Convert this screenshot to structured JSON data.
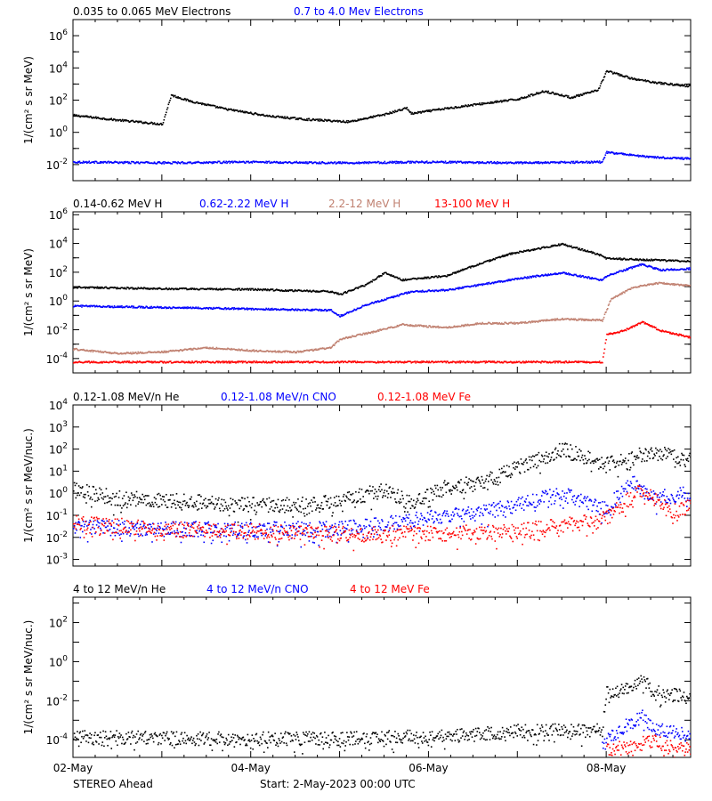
{
  "chart_data": [
    {
      "type": "scatter",
      "ylabel": "1/(cm² s sr MeV)",
      "log_y": true,
      "y_tick_exponents": [
        "6",
        "4",
        "2",
        "0",
        "-2"
      ],
      "series": [
        {
          "name": "0.035 to 0.065 MeV Electrons",
          "color": "#000000",
          "x": [
            2.0,
            2.5,
            3.0,
            3.1,
            3.3,
            3.7,
            4.2,
            4.6,
            5.1,
            5.5,
            5.75,
            5.8,
            6.1,
            6.5,
            7.0,
            7.3,
            7.6,
            7.9,
            8.0,
            8.3,
            8.6,
            8.95
          ],
          "y": [
            1.1,
            0.8,
            0.55,
            2.35,
            2.0,
            1.5,
            1.05,
            0.85,
            0.7,
            1.15,
            1.55,
            1.2,
            1.45,
            1.75,
            2.1,
            2.6,
            2.2,
            2.65,
            3.85,
            3.35,
            3.1,
            2.9
          ]
        },
        {
          "name": "0.7 to 4.0 Mev Electrons",
          "color": "#0000ff",
          "x": [
            2.0,
            3.0,
            4.0,
            5.0,
            6.0,
            7.0,
            7.95,
            8.0,
            8.5,
            8.95
          ],
          "y": [
            -1.8,
            -1.85,
            -1.8,
            -1.85,
            -1.8,
            -1.85,
            -1.8,
            -1.2,
            -1.5,
            -1.6
          ]
        }
      ],
      "x_ticks": [
        "02-May",
        "04-May",
        "06-May",
        "08-May"
      ]
    },
    {
      "type": "scatter",
      "ylabel": "1/(cm² s sr MeV)",
      "log_y": true,
      "y_tick_exponents": [
        "6",
        "4",
        "2",
        "0",
        "-2",
        "-4"
      ],
      "series": [
        {
          "name": "0.14-0.62 MeV H",
          "color": "#000000",
          "x": [
            2.0,
            3.0,
            4.0,
            4.9,
            5.0,
            5.3,
            5.5,
            5.7,
            6.2,
            6.6,
            6.9,
            7.5,
            7.9,
            8.0,
            8.5,
            8.95
          ],
          "y": [
            1.0,
            0.9,
            0.85,
            0.7,
            0.5,
            1.2,
            2.0,
            1.5,
            1.8,
            2.7,
            3.3,
            4.0,
            3.3,
            3.0,
            2.9,
            2.8
          ]
        },
        {
          "name": "0.62-2.22 MeV H",
          "color": "#0000ff",
          "x": [
            2.0,
            3.0,
            4.0,
            4.9,
            5.0,
            5.3,
            5.8,
            6.2,
            6.6,
            7.0,
            7.5,
            7.95,
            8.0,
            8.4,
            8.6,
            8.95
          ],
          "y": [
            -0.3,
            -0.4,
            -0.5,
            -0.6,
            -1.0,
            -0.2,
            0.7,
            0.8,
            1.2,
            1.6,
            2.0,
            1.5,
            1.8,
            2.6,
            2.2,
            2.3
          ]
        },
        {
          "name": "2.2-12 MeV H",
          "color": "#c08070",
          "x": [
            2.0,
            2.5,
            3.0,
            3.5,
            4.0,
            4.5,
            4.9,
            5.0,
            5.3,
            5.7,
            6.2,
            6.6,
            7.0,
            7.5,
            7.95,
            8.05,
            8.3,
            8.6,
            8.95
          ],
          "y": [
            -3.3,
            -3.6,
            -3.5,
            -3.2,
            -3.4,
            -3.5,
            -3.2,
            -2.6,
            -2.2,
            -1.6,
            -1.8,
            -1.5,
            -1.5,
            -1.2,
            -1.3,
            0.2,
            1.0,
            1.3,
            1.1
          ]
        },
        {
          "name": "13-100 MeV H",
          "color": "#ff0000",
          "x": [
            2.0,
            3.0,
            4.0,
            5.0,
            6.0,
            7.0,
            7.95,
            8.0,
            8.2,
            8.4,
            8.6,
            8.95
          ],
          "y": [
            -4.2,
            -4.2,
            -4.2,
            -4.2,
            -4.2,
            -4.2,
            -4.2,
            -2.3,
            -2.0,
            -1.4,
            -2.0,
            -2.5
          ]
        }
      ],
      "x_ticks": [
        "02-May",
        "04-May",
        "06-May",
        "08-May"
      ]
    },
    {
      "type": "scatter",
      "ylabel": "1/(cm² s sr MeV/nuc.)",
      "log_y": true,
      "y_tick_labels": [
        "10⁴",
        "10³",
        "10²",
        "10¹",
        "10⁰",
        "10⁻¹",
        "10⁻²",
        "10⁻³"
      ],
      "series": [
        {
          "name": "0.12-1.08 MeV/n He",
          "color": "#000000",
          "x": [
            2.0,
            2.5,
            3.0,
            3.5,
            4.0,
            4.5,
            4.9,
            5.5,
            5.8,
            6.2,
            6.6,
            7.0,
            7.5,
            7.9,
            8.0,
            8.5,
            8.95
          ],
          "y": [
            0.2,
            -0.2,
            -0.3,
            -0.4,
            -0.5,
            -0.5,
            -0.4,
            0.2,
            -0.4,
            0.3,
            0.5,
            1.2,
            2.0,
            1.5,
            1.3,
            1.9,
            1.5
          ]
        },
        {
          "name": "0.12-1.08 MeV/n CNO",
          "color": "#0000ff",
          "x": [
            2.0,
            3.0,
            4.0,
            5.0,
            5.8,
            6.2,
            6.6,
            7.0,
            7.5,
            7.9,
            8.0,
            8.3,
            8.5,
            8.95
          ],
          "y": [
            -1.5,
            -1.6,
            -1.6,
            -1.6,
            -1.2,
            -1.0,
            -0.8,
            -0.5,
            0.0,
            -0.6,
            -0.6,
            0.5,
            -0.2,
            0.0
          ]
        },
        {
          "name": "0.12-1.08 MeV Fe",
          "color": "#ff0000",
          "x": [
            2.0,
            3.0,
            4.0,
            5.0,
            6.0,
            7.0,
            7.9,
            8.2,
            8.4,
            8.7,
            8.95
          ],
          "y": [
            -1.3,
            -1.6,
            -1.7,
            -1.8,
            -1.8,
            -1.7,
            -1.2,
            -0.4,
            0.3,
            -0.8,
            -0.6
          ]
        }
      ],
      "x_ticks": [
        "02-May",
        "04-May",
        "06-May",
        "08-May"
      ]
    },
    {
      "type": "scatter",
      "ylabel": "1/(cm² s sr MeV/nuc.)",
      "log_y": true,
      "y_tick_exponents": [
        "2",
        "0",
        "-2",
        "-4"
      ],
      "series": [
        {
          "name": "4 to 12 MeV/n He",
          "color": "#000000",
          "x": [
            2.0,
            3.0,
            4.0,
            5.0,
            6.0,
            6.5,
            7.0,
            7.5,
            7.95,
            8.0,
            8.2,
            8.4,
            8.6,
            8.95
          ],
          "y": [
            -3.8,
            -3.9,
            -3.9,
            -3.9,
            -3.8,
            -3.7,
            -3.5,
            -3.5,
            -3.5,
            -1.6,
            -1.4,
            -1.0,
            -1.6,
            -1.8
          ]
        },
        {
          "name": "4 to 12 MeV/n CNO",
          "color": "#0000ff",
          "x": [
            7.95,
            8.0,
            8.2,
            8.4,
            8.6,
            8.95
          ],
          "y": [
            -4.3,
            -4.0,
            -3.3,
            -2.8,
            -3.5,
            -3.6
          ]
        },
        {
          "name": "4 to 12 MeV Fe",
          "color": "#ff0000",
          "x": [
            8.0,
            8.3,
            8.5,
            8.7,
            8.95
          ],
          "y": [
            -4.5,
            -4.3,
            -4.0,
            -4.3,
            -4.5
          ]
        }
      ],
      "x_ticks": [
        "02-May",
        "04-May",
        "06-May",
        "08-May"
      ]
    }
  ],
  "footer": {
    "left": "STEREO Ahead",
    "start": "Start:  2-May-2023 00:00 UTC"
  }
}
